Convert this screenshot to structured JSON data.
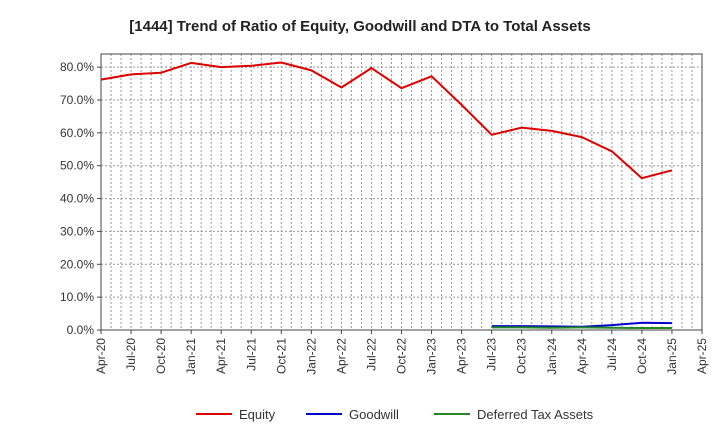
{
  "chart_data": {
    "type": "line",
    "title": "[1444]  Trend of Ratio of Equity, Goodwill and DTA to Total Assets",
    "xlabel": "",
    "ylabel": "",
    "x_ticks": [
      "Apr-20",
      "Jul-20",
      "Oct-20",
      "Jan-21",
      "Apr-21",
      "Jul-21",
      "Oct-21",
      "Jan-22",
      "Apr-22",
      "Jul-22",
      "Oct-22",
      "Jan-23",
      "Apr-23",
      "Jul-23",
      "Oct-23",
      "Jan-24",
      "Apr-24",
      "Jul-24",
      "Oct-24",
      "Jan-25",
      "Apr-25"
    ],
    "y_ticks": [
      "0.0%",
      "10.0%",
      "20.0%",
      "30.0%",
      "40.0%",
      "50.0%",
      "60.0%",
      "70.0%",
      "80.0%"
    ],
    "y_tick_values": [
      0,
      10,
      20,
      30,
      40,
      50,
      60,
      70,
      80
    ],
    "ylim": [
      0,
      84
    ],
    "x_range_months": [
      0,
      60
    ],
    "grid": true,
    "legend_position": "bottom-center",
    "series": [
      {
        "name": "Equity",
        "color": "#dd0000",
        "points": [
          [
            0,
            76.2
          ],
          [
            3,
            77.8
          ],
          [
            6,
            78.3
          ],
          [
            9,
            81.3
          ],
          [
            12,
            80.0
          ],
          [
            15,
            80.4
          ],
          [
            18,
            81.4
          ],
          [
            21,
            79.0
          ],
          [
            24,
            73.8
          ],
          [
            27,
            79.7
          ],
          [
            30,
            73.6
          ],
          [
            33,
            77.2
          ],
          [
            36,
            68.5
          ],
          [
            39,
            59.4
          ],
          [
            42,
            61.6
          ],
          [
            45,
            60.6
          ],
          [
            48,
            58.7
          ],
          [
            51,
            54.4
          ],
          [
            54,
            46.2
          ],
          [
            57,
            48.6
          ]
        ]
      },
      {
        "name": "Goodwill",
        "color": "#0000cc",
        "points": [
          [
            39,
            1.2
          ],
          [
            42,
            1.2
          ],
          [
            45,
            1.1
          ],
          [
            48,
            1.0
          ],
          [
            51,
            1.5
          ],
          [
            54,
            2.2
          ],
          [
            57,
            2.1
          ]
        ]
      },
      {
        "name": "Deferred Tax Assets",
        "color": "#228822",
        "points": [
          [
            39,
            0.8
          ],
          [
            42,
            0.8
          ],
          [
            45,
            0.7
          ],
          [
            48,
            0.8
          ],
          [
            51,
            0.7
          ],
          [
            54,
            0.6
          ],
          [
            57,
            0.6
          ]
        ]
      }
    ]
  }
}
